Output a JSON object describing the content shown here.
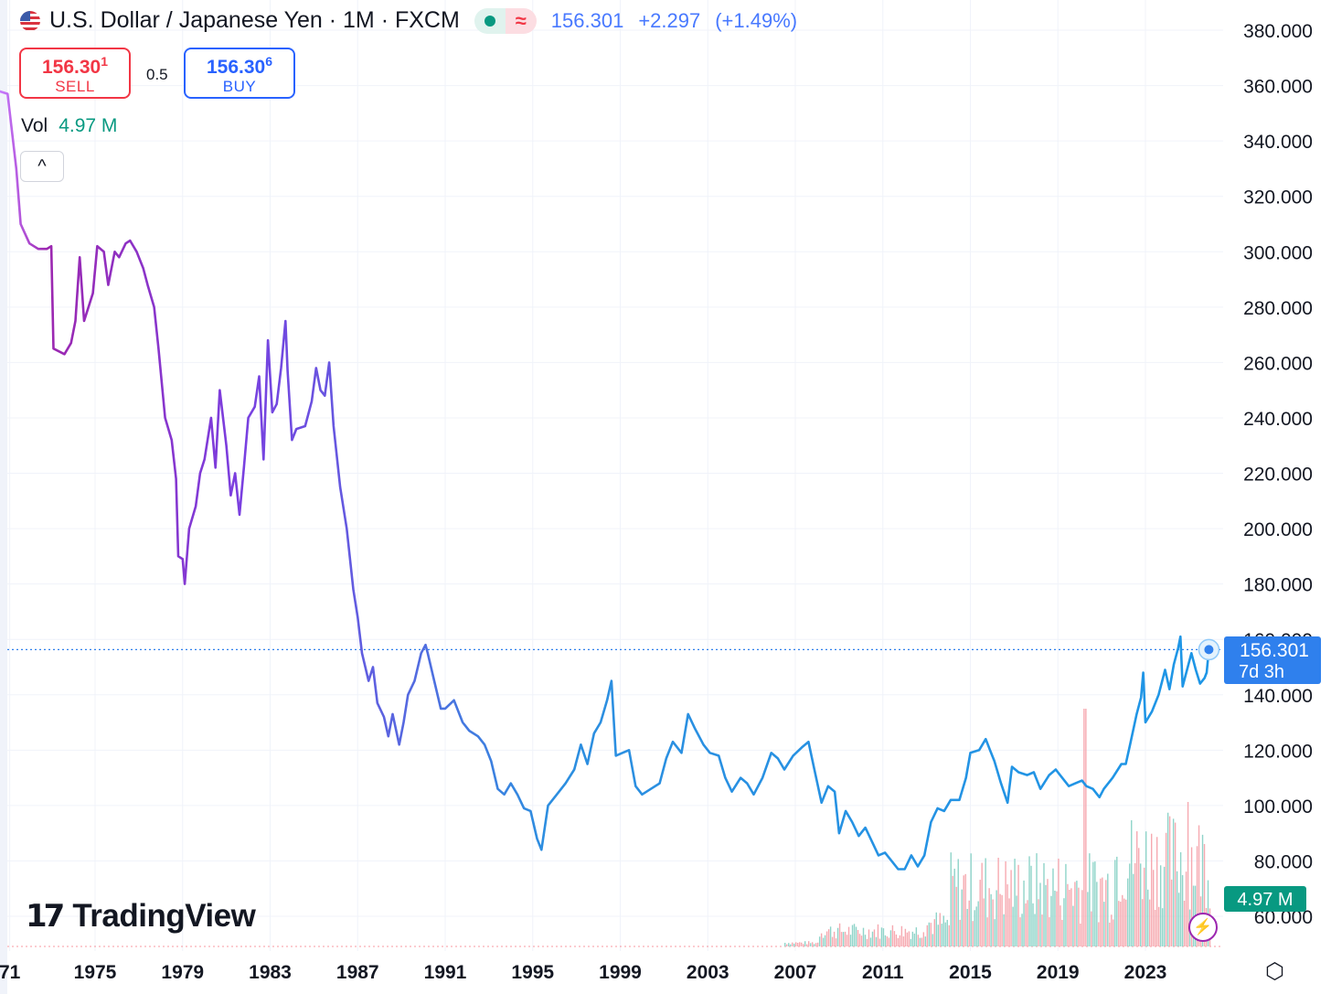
{
  "header": {
    "title": "U.S. Dollar / Japanese Yen · 1M · FXCM",
    "flag_icon": "us-flag-icon",
    "status_icon": "market-open-dot-icon",
    "wave_icon": "≈",
    "last_price": "156.301",
    "change": "+2.297",
    "change_pct": "(+1.49%)"
  },
  "trade": {
    "sell_price": "156.30",
    "sell_price_sup": "1",
    "sell_label": "SELL",
    "spread": "0.5",
    "buy_price": "156.30",
    "buy_price_sup": "6",
    "buy_label": "BUY"
  },
  "volume": {
    "label": "Vol",
    "value": "4.97 M"
  },
  "collapse_icon": "^",
  "price_tag": {
    "price": "156.301",
    "countdown": "7d 3h"
  },
  "volume_tag": "4.97 M",
  "logo": {
    "mark": "17",
    "name": "TradingView"
  },
  "settings_icon": "⬡",
  "bolt_icon": "⚡",
  "colors": {
    "up": "#089981",
    "down": "#f23645",
    "accent": "#2962ff",
    "line_start": "#9c27b0",
    "line_end": "#1e96e6",
    "tag": "#2f80ed"
  },
  "chart_data": {
    "type": "line",
    "title": "U.S. Dollar / Japanese Yen · 1M · FXCM",
    "y_ticks": [
      "380.000",
      "360.000",
      "340.000",
      "320.000",
      "300.000",
      "280.000",
      "260.000",
      "240.000",
      "220.000",
      "200.000",
      "180.000",
      "160.000",
      "140.000",
      "120.000",
      "100.000",
      "80.000",
      "60.000"
    ],
    "x_ticks": [
      {
        "label": "71",
        "year": 1971.1
      },
      {
        "label": "1975",
        "year": 1975
      },
      {
        "label": "1979",
        "year": 1979
      },
      {
        "label": "1983",
        "year": 1983
      },
      {
        "label": "1987",
        "year": 1987
      },
      {
        "label": "1991",
        "year": 1991
      },
      {
        "label": "1995",
        "year": 1995
      },
      {
        "label": "1999",
        "year": 1999
      },
      {
        "label": "2003",
        "year": 2003
      },
      {
        "label": "2007",
        "year": 2007
      },
      {
        "label": "2011",
        "year": 2011
      },
      {
        "label": "2015",
        "year": 2015
      },
      {
        "label": "2019",
        "year": 2019
      },
      {
        "label": "2023",
        "year": 2023
      }
    ],
    "ylim": [
      60,
      380
    ],
    "xlim": [
      1970.6,
      2026
    ],
    "current_price": 156.301,
    "series": [
      {
        "name": "USDJPY",
        "points": [
          [
            1970.6,
            358
          ],
          [
            1971.0,
            357
          ],
          [
            1971.4,
            330
          ],
          [
            1971.6,
            310
          ],
          [
            1972.0,
            303
          ],
          [
            1972.4,
            301
          ],
          [
            1972.8,
            301
          ],
          [
            1973.0,
            302
          ],
          [
            1973.1,
            265
          ],
          [
            1973.6,
            263
          ],
          [
            1973.9,
            267
          ],
          [
            1974.1,
            275
          ],
          [
            1974.3,
            298
          ],
          [
            1974.5,
            275
          ],
          [
            1974.9,
            285
          ],
          [
            1975.1,
            302
          ],
          [
            1975.4,
            300
          ],
          [
            1975.6,
            288
          ],
          [
            1975.9,
            300
          ],
          [
            1976.1,
            298
          ],
          [
            1976.4,
            303
          ],
          [
            1976.6,
            304
          ],
          [
            1976.9,
            300
          ],
          [
            1977.2,
            294
          ],
          [
            1977.4,
            288
          ],
          [
            1977.7,
            280
          ],
          [
            1977.9,
            265
          ],
          [
            1978.2,
            240
          ],
          [
            1978.5,
            232
          ],
          [
            1978.7,
            218
          ],
          [
            1978.8,
            190
          ],
          [
            1979.0,
            189
          ],
          [
            1979.1,
            180
          ],
          [
            1979.3,
            200
          ],
          [
            1979.6,
            208
          ],
          [
            1979.8,
            220
          ],
          [
            1980.0,
            225
          ],
          [
            1980.3,
            240
          ],
          [
            1980.5,
            222
          ],
          [
            1980.7,
            250
          ],
          [
            1981.0,
            230
          ],
          [
            1981.2,
            212
          ],
          [
            1981.4,
            220
          ],
          [
            1981.6,
            205
          ],
          [
            1981.8,
            222
          ],
          [
            1982.0,
            240
          ],
          [
            1982.3,
            244
          ],
          [
            1982.5,
            255
          ],
          [
            1982.7,
            225
          ],
          [
            1982.9,
            268
          ],
          [
            1983.1,
            242
          ],
          [
            1983.3,
            245
          ],
          [
            1983.5,
            258
          ],
          [
            1983.7,
            275
          ],
          [
            1983.8,
            257
          ],
          [
            1984.0,
            232
          ],
          [
            1984.2,
            236
          ],
          [
            1984.6,
            237
          ],
          [
            1984.9,
            246
          ],
          [
            1985.1,
            258
          ],
          [
            1985.3,
            250
          ],
          [
            1985.5,
            248
          ],
          [
            1985.7,
            260
          ],
          [
            1985.9,
            237
          ],
          [
            1986.2,
            215
          ],
          [
            1986.5,
            200
          ],
          [
            1986.8,
            178
          ],
          [
            1987.0,
            168
          ],
          [
            1987.2,
            155
          ],
          [
            1987.5,
            145
          ],
          [
            1987.7,
            150
          ],
          [
            1987.9,
            137
          ],
          [
            1988.2,
            132
          ],
          [
            1988.4,
            125
          ],
          [
            1988.6,
            133
          ],
          [
            1988.9,
            122
          ],
          [
            1989.1,
            130
          ],
          [
            1989.3,
            140
          ],
          [
            1989.6,
            145
          ],
          [
            1989.9,
            155
          ],
          [
            1990.1,
            158
          ],
          [
            1990.2,
            155
          ],
          [
            1990.5,
            145
          ],
          [
            1990.8,
            135
          ],
          [
            1991.0,
            135
          ],
          [
            1991.4,
            138
          ],
          [
            1991.8,
            130
          ],
          [
            1992.1,
            127
          ],
          [
            1992.5,
            125
          ],
          [
            1992.8,
            122
          ],
          [
            1993.1,
            116
          ],
          [
            1993.4,
            106
          ],
          [
            1993.7,
            104
          ],
          [
            1994.0,
            108
          ],
          [
            1994.3,
            104
          ],
          [
            1994.6,
            99
          ],
          [
            1994.9,
            98
          ],
          [
            1995.2,
            88
          ],
          [
            1995.4,
            84
          ],
          [
            1995.7,
            100
          ],
          [
            1996.1,
            104
          ],
          [
            1996.5,
            108
          ],
          [
            1996.9,
            113
          ],
          [
            1997.2,
            122
          ],
          [
            1997.5,
            115
          ],
          [
            1997.8,
            126
          ],
          [
            1998.1,
            130
          ],
          [
            1998.4,
            138
          ],
          [
            1998.6,
            145
          ],
          [
            1998.8,
            118
          ],
          [
            1999.1,
            119
          ],
          [
            1999.4,
            120
          ],
          [
            1999.7,
            107
          ],
          [
            2000.0,
            104
          ],
          [
            2000.4,
            106
          ],
          [
            2000.8,
            108
          ],
          [
            2001.1,
            117
          ],
          [
            2001.4,
            123
          ],
          [
            2001.8,
            119
          ],
          [
            2002.1,
            133
          ],
          [
            2002.4,
            128
          ],
          [
            2002.8,
            122
          ],
          [
            2003.1,
            119
          ],
          [
            2003.5,
            118
          ],
          [
            2003.8,
            110
          ],
          [
            2004.1,
            105
          ],
          [
            2004.5,
            110
          ],
          [
            2004.8,
            108
          ],
          [
            2005.1,
            104
          ],
          [
            2005.5,
            110
          ],
          [
            2005.9,
            119
          ],
          [
            2006.2,
            117
          ],
          [
            2006.5,
            113
          ],
          [
            2006.9,
            118
          ],
          [
            2007.3,
            121
          ],
          [
            2007.6,
            123
          ],
          [
            2007.9,
            112
          ],
          [
            2008.2,
            101
          ],
          [
            2008.5,
            107
          ],
          [
            2008.8,
            105
          ],
          [
            2009.0,
            90
          ],
          [
            2009.3,
            98
          ],
          [
            2009.6,
            94
          ],
          [
            2009.9,
            89
          ],
          [
            2010.2,
            92
          ],
          [
            2010.5,
            87
          ],
          [
            2010.8,
            82
          ],
          [
            2011.1,
            83
          ],
          [
            2011.4,
            80
          ],
          [
            2011.7,
            77
          ],
          [
            2012.0,
            77
          ],
          [
            2012.3,
            82
          ],
          [
            2012.6,
            78
          ],
          [
            2012.9,
            82
          ],
          [
            2013.2,
            94
          ],
          [
            2013.5,
            99
          ],
          [
            2013.8,
            98
          ],
          [
            2014.1,
            102
          ],
          [
            2014.5,
            102
          ],
          [
            2014.8,
            110
          ],
          [
            2015.0,
            119
          ],
          [
            2015.4,
            120
          ],
          [
            2015.7,
            124
          ],
          [
            2015.9,
            120
          ],
          [
            2016.1,
            116
          ],
          [
            2016.4,
            108
          ],
          [
            2016.7,
            101
          ],
          [
            2016.9,
            114
          ],
          [
            2017.2,
            112
          ],
          [
            2017.6,
            111
          ],
          [
            2017.9,
            112
          ],
          [
            2018.2,
            106
          ],
          [
            2018.6,
            111
          ],
          [
            2018.9,
            113
          ],
          [
            2019.1,
            111
          ],
          [
            2019.5,
            107
          ],
          [
            2019.8,
            108
          ],
          [
            2020.1,
            109
          ],
          [
            2020.3,
            107
          ],
          [
            2020.6,
            106
          ],
          [
            2020.9,
            103
          ],
          [
            2021.1,
            106
          ],
          [
            2021.5,
            110
          ],
          [
            2021.9,
            115
          ],
          [
            2022.1,
            115
          ],
          [
            2022.3,
            122
          ],
          [
            2022.6,
            133
          ],
          [
            2022.8,
            139
          ],
          [
            2022.9,
            148
          ],
          [
            2023.0,
            130
          ],
          [
            2023.3,
            134
          ],
          [
            2023.6,
            140
          ],
          [
            2023.9,
            149
          ],
          [
            2024.1,
            142
          ],
          [
            2024.3,
            151
          ],
          [
            2024.5,
            157
          ],
          [
            2024.6,
            161
          ],
          [
            2024.7,
            143
          ],
          [
            2024.9,
            149
          ],
          [
            2025.1,
            155
          ],
          [
            2025.3,
            149
          ],
          [
            2025.5,
            144
          ],
          [
            2025.7,
            146
          ],
          [
            2025.8,
            148
          ],
          [
            2025.9,
            156.3
          ]
        ]
      }
    ],
    "volume_bars": "monthly tick volume, small before 2008, larger 2013-2025 (peak near 2020)"
  }
}
